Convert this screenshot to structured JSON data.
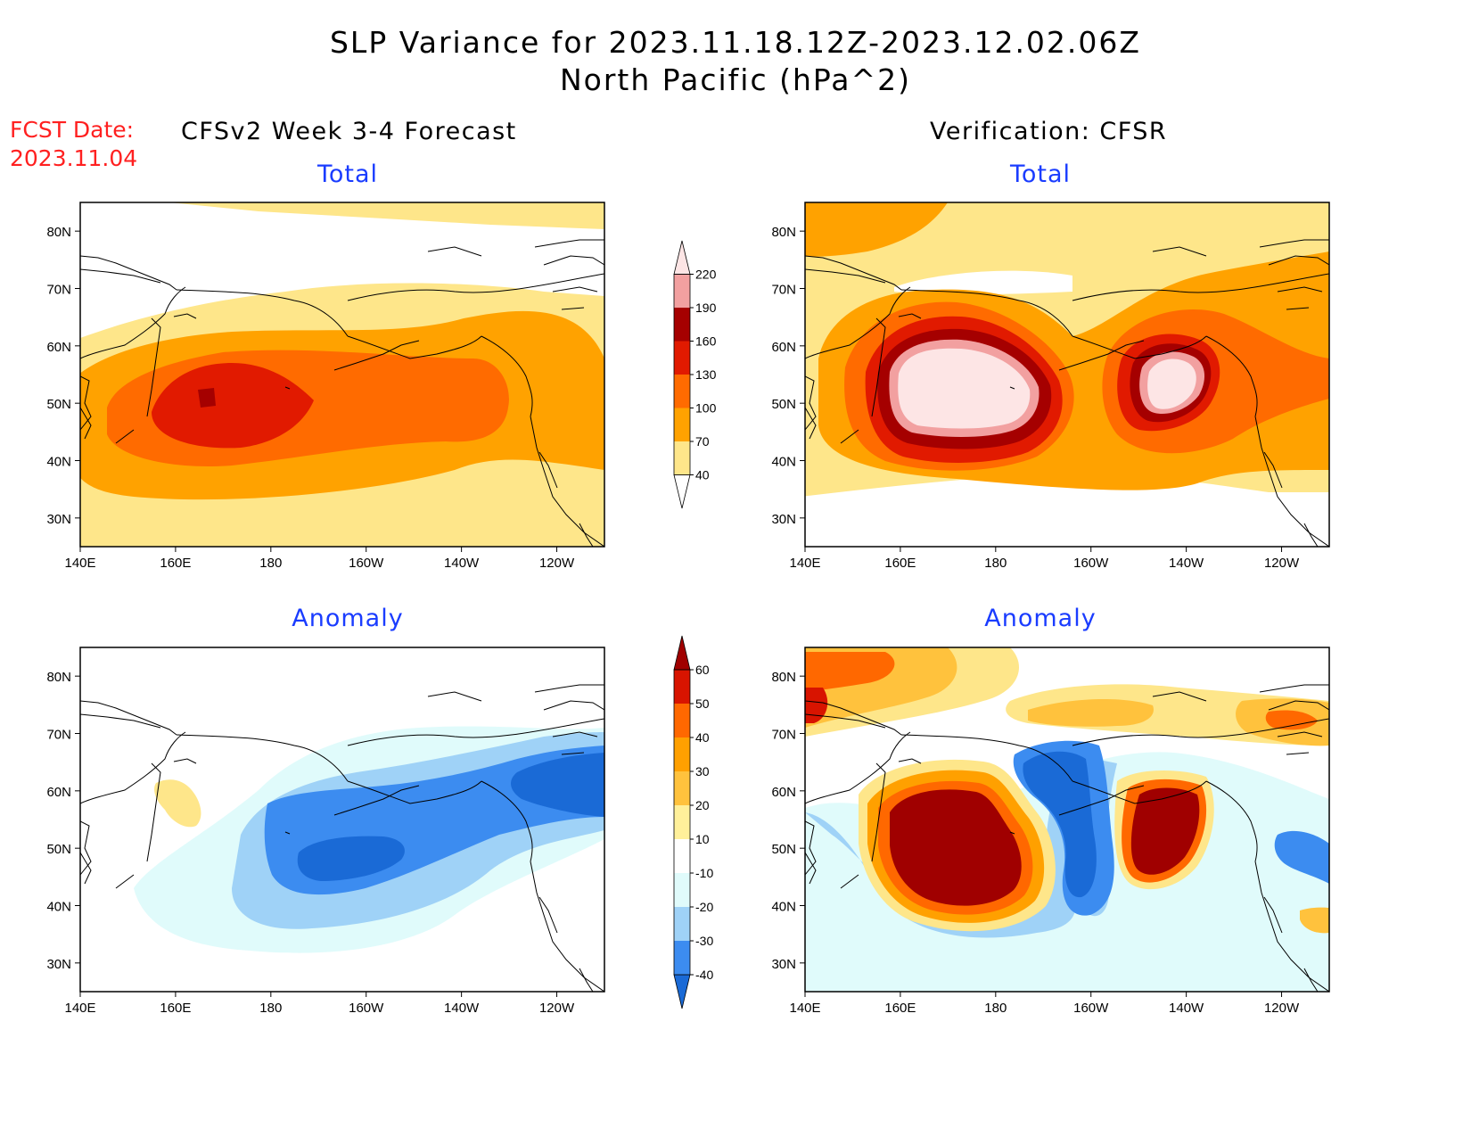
{
  "title": {
    "line1": "SLP Variance for 2023.11.18.12Z-2023.12.02.06Z",
    "line2": "North Pacific (hPa^2)"
  },
  "fcst_date": {
    "label": "FCST Date:",
    "value": "2023.11.04"
  },
  "columns": {
    "left": "CFSv2 Week 3-4 Forecast",
    "right": "Verification: CFSR"
  },
  "panels": [
    {
      "id": "forecast-total",
      "title": "Total",
      "field": "total"
    },
    {
      "id": "verification-total",
      "title": "Total",
      "field": "total"
    },
    {
      "id": "forecast-anomaly",
      "title": "Anomaly",
      "field": "anomaly"
    },
    {
      "id": "verification-anomaly",
      "title": "Anomaly",
      "field": "anomaly"
    }
  ],
  "axes": {
    "lon_ticks": [
      "140E",
      "160E",
      "180",
      "160W",
      "140W",
      "120W"
    ],
    "lat_ticks": [
      "80N",
      "70N",
      "60N",
      "50N",
      "40N",
      "30N"
    ],
    "lon_range": [
      140,
      250
    ],
    "lat_range": [
      25,
      85
    ]
  },
  "colorbars": {
    "total": {
      "levels": [
        "40",
        "70",
        "100",
        "130",
        "160",
        "190",
        "220"
      ],
      "colors": [
        "#ffffff",
        "#fee68a",
        "#ffa200",
        "#ff6b00",
        "#e11a00",
        "#a50000",
        "#f2a0a0",
        "#fde5e5"
      ]
    },
    "anomaly": {
      "levels": [
        "-40",
        "-30",
        "-20",
        "-10",
        "10",
        "20",
        "30",
        "40",
        "50",
        "60"
      ],
      "colors": [
        "#1a6ad6",
        "#3c8cf0",
        "#9fd2f7",
        "#e0fbfb",
        "#ffffff",
        "#fff09a",
        "#ffc23d",
        "#ffa000",
        "#ff6800",
        "#d81400",
        "#a00000"
      ]
    }
  }
}
